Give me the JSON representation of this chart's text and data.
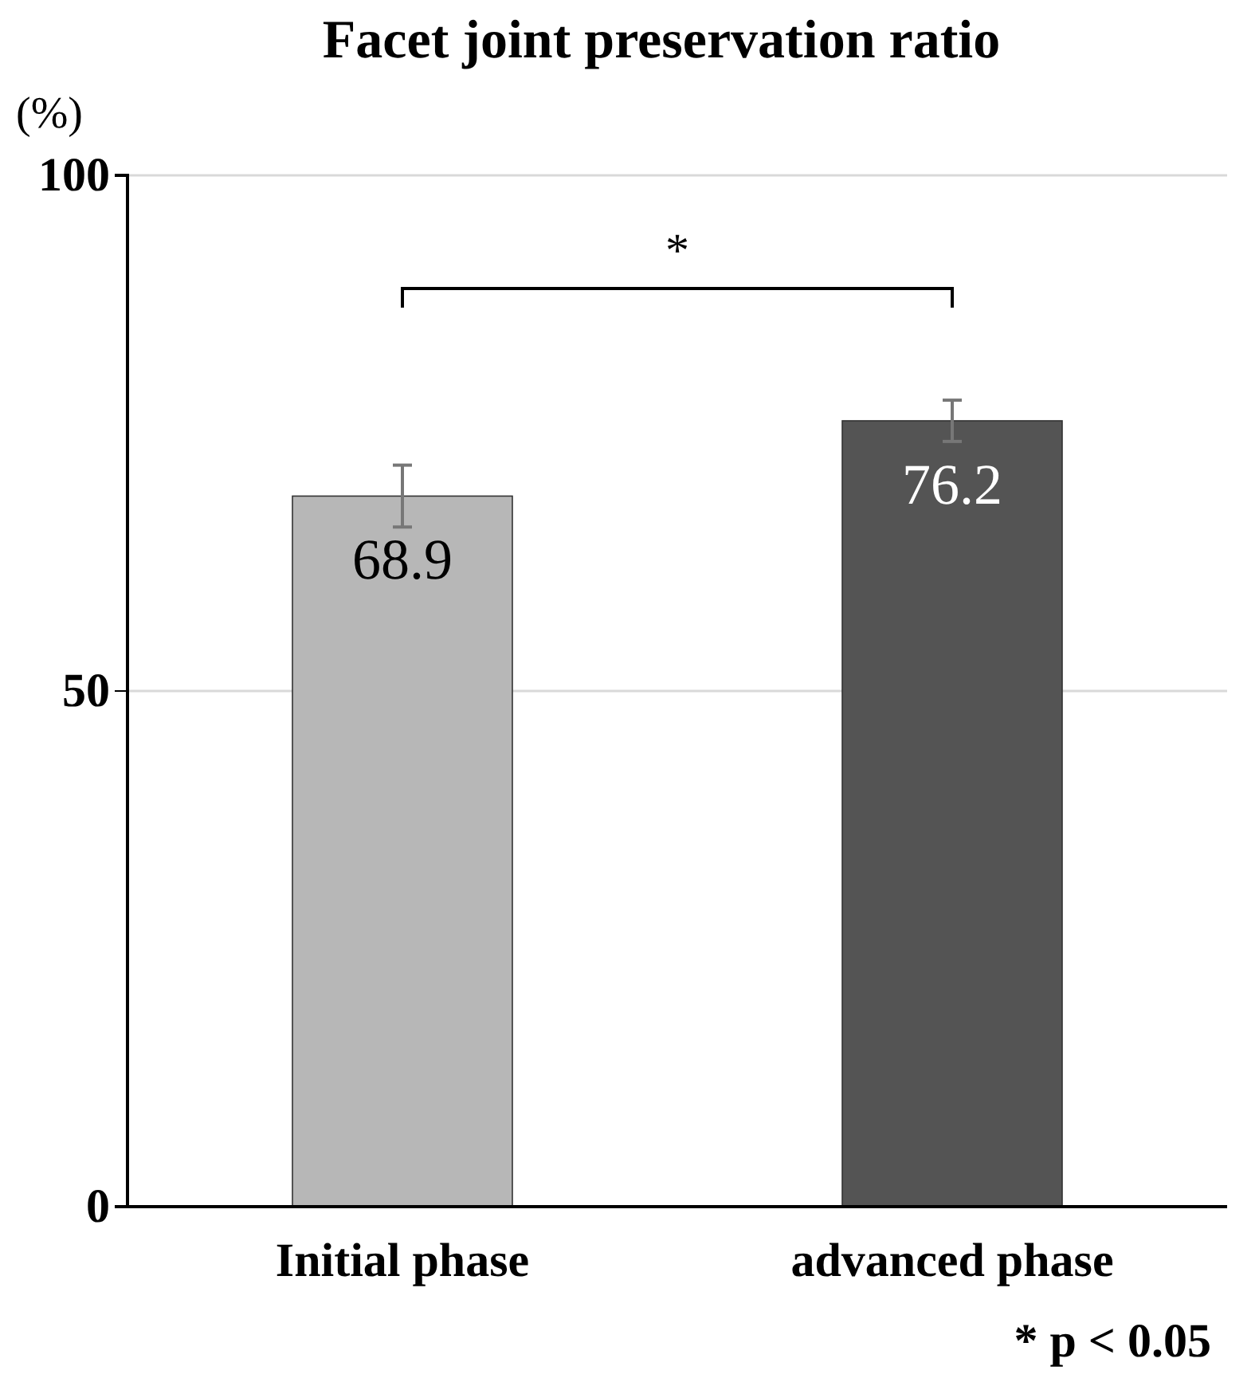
{
  "chart_data": {
    "type": "bar",
    "title": "Facet joint preservation ratio",
    "ylabel": "(%)",
    "categories": [
      "Initial phase",
      "advanced phase"
    ],
    "values": [
      68.9,
      76.2
    ],
    "colors": [
      "#b7b7b7",
      "#545454"
    ],
    "errors": [
      3,
      2
    ],
    "ylim": [
      0,
      100
    ],
    "yticks": [
      0,
      50,
      100
    ],
    "grid": "y",
    "data_labels": true,
    "annotations": [
      "*",
      "* p < 0.05"
    ]
  }
}
